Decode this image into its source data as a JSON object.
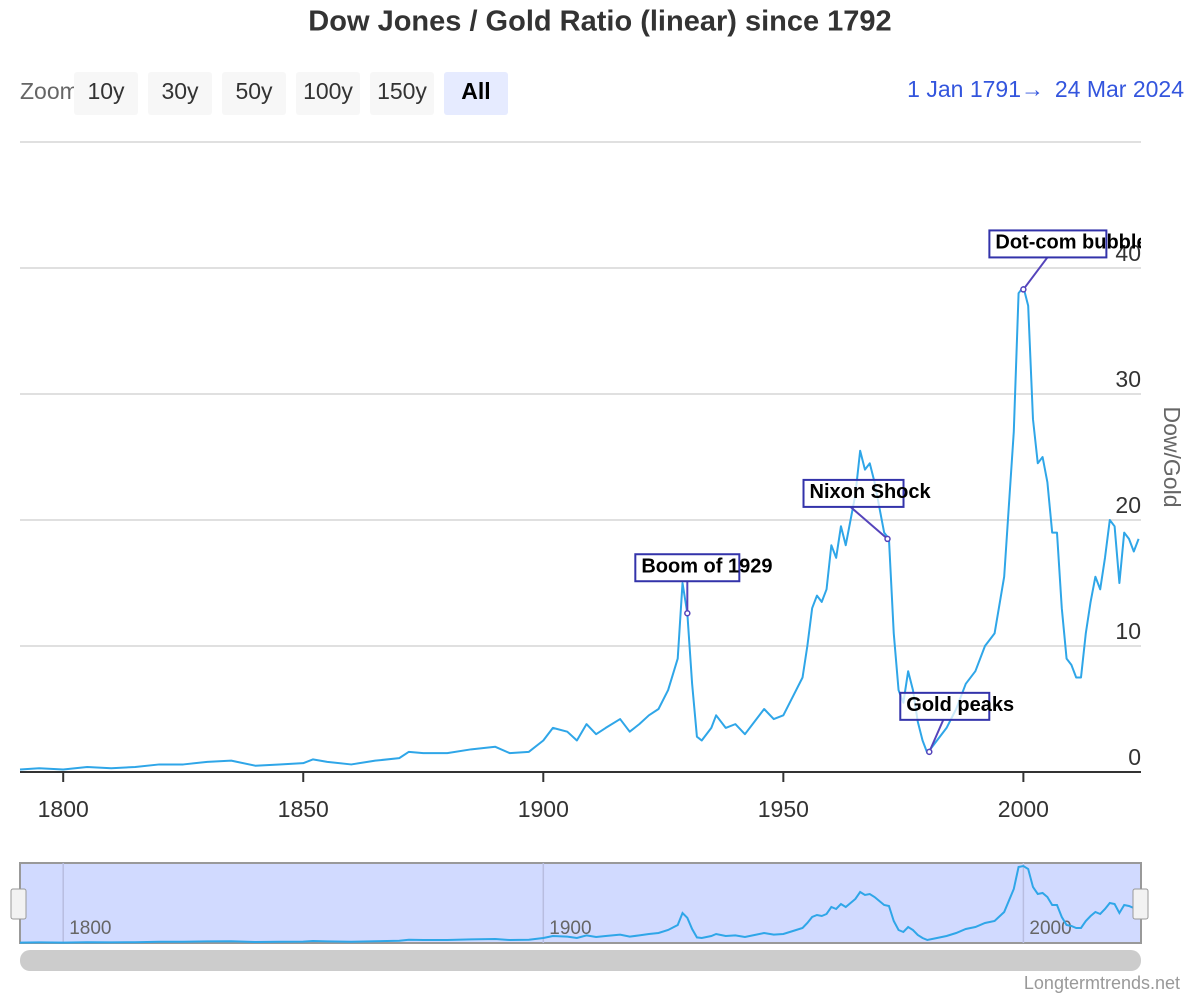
{
  "chart_data": {
    "type": "line",
    "title": "Dow Jones / Gold Ratio (linear) since 1792",
    "zoom_label": "Zoom",
    "zoom_buttons": [
      "10y",
      "30y",
      "50y",
      "100y",
      "150y",
      "All"
    ],
    "selected_button": "All",
    "range_from": "1 Jan 1791",
    "range_to": "24 Mar 2024",
    "y_axis_label": "Dow/Gold",
    "credit": "Longtermtrends.net",
    "color": "#2fa6e8",
    "grid": true,
    "xlim": [
      1791,
      2024.5
    ],
    "ylim": [
      0,
      50
    ],
    "xticks": [
      1800,
      1850,
      1900,
      1950,
      2000
    ],
    "yticks": [
      0,
      10,
      20,
      30,
      40
    ],
    "navigator_xticks": [
      1800,
      1900,
      2000
    ],
    "x": [
      1791,
      1795,
      1800,
      1805,
      1810,
      1815,
      1820,
      1825,
      1830,
      1835,
      1840,
      1845,
      1850,
      1852,
      1855,
      1860,
      1865,
      1870,
      1872,
      1875,
      1880,
      1885,
      1890,
      1893,
      1897,
      1900,
      1902,
      1905,
      1907,
      1909,
      1911,
      1913,
      1916,
      1918,
      1920,
      1922,
      1924,
      1926,
      1928,
      1929,
      1930,
      1931,
      1932,
      1933,
      1935,
      1936,
      1938,
      1940,
      1942,
      1944,
      1946,
      1948,
      1950,
      1952,
      1954,
      1955,
      1956,
      1957,
      1958,
      1959,
      1960,
      1961,
      1962,
      1963,
      1965,
      1966,
      1967,
      1968,
      1969,
      1970,
      1971,
      1972,
      1973,
      1974,
      1975,
      1976,
      1977,
      1978,
      1979,
      1980,
      1982,
      1984,
      1986,
      1988,
      1990,
      1992,
      1994,
      1996,
      1998,
      1999,
      2000,
      2001,
      2002,
      2003,
      2004,
      2005,
      2006,
      2007,
      2008,
      2009,
      2010,
      2011,
      2012,
      2013,
      2014,
      2015,
      2016,
      2017,
      2018,
      2019,
      2020,
      2021,
      2022,
      2023,
      2024
    ],
    "values": [
      0.2,
      0.3,
      0.2,
      0.4,
      0.3,
      0.4,
      0.6,
      0.6,
      0.8,
      0.9,
      0.5,
      0.6,
      0.7,
      1.0,
      0.8,
      0.6,
      0.9,
      1.1,
      1.6,
      1.5,
      1.5,
      1.8,
      2.0,
      1.5,
      1.6,
      2.5,
      3.5,
      3.2,
      2.5,
      3.8,
      3.0,
      3.5,
      4.2,
      3.2,
      3.8,
      4.5,
      5.0,
      6.5,
      9.0,
      15.0,
      12.6,
      7.0,
      2.8,
      2.5,
      3.5,
      4.5,
      3.5,
      3.8,
      3.0,
      4.0,
      5.0,
      4.2,
      4.5,
      6.0,
      7.5,
      10.0,
      13.0,
      14.0,
      13.5,
      14.5,
      18.0,
      17.0,
      19.5,
      18.0,
      22.0,
      25.5,
      24.0,
      24.5,
      23.0,
      21.0,
      19.0,
      18.5,
      11.0,
      6.5,
      5.5,
      8.0,
      6.5,
      4.0,
      2.5,
      1.5,
      2.5,
      3.5,
      5.0,
      7.0,
      8.0,
      10.0,
      11.0,
      15.5,
      27.0,
      38.0,
      38.5,
      37.0,
      28.0,
      24.5,
      25.0,
      23.0,
      19.0,
      19.0,
      13.0,
      9.0,
      8.5,
      7.5,
      7.5,
      11.0,
      13.5,
      15.5,
      14.5,
      17.0,
      20.0,
      19.5,
      15.0,
      19.0,
      18.5,
      17.5,
      18.5
    ],
    "annotations": [
      {
        "text": "Boom of 1929",
        "x": 1930,
        "y": 12.6
      },
      {
        "text": "Nixon Shock",
        "x": 1971.7,
        "y": 18.5
      },
      {
        "text": "Gold peaks",
        "x": 1980.4,
        "y": 1.6
      },
      {
        "text": "Dot-com bubble",
        "x": 2000,
        "y": 38.3
      }
    ]
  }
}
